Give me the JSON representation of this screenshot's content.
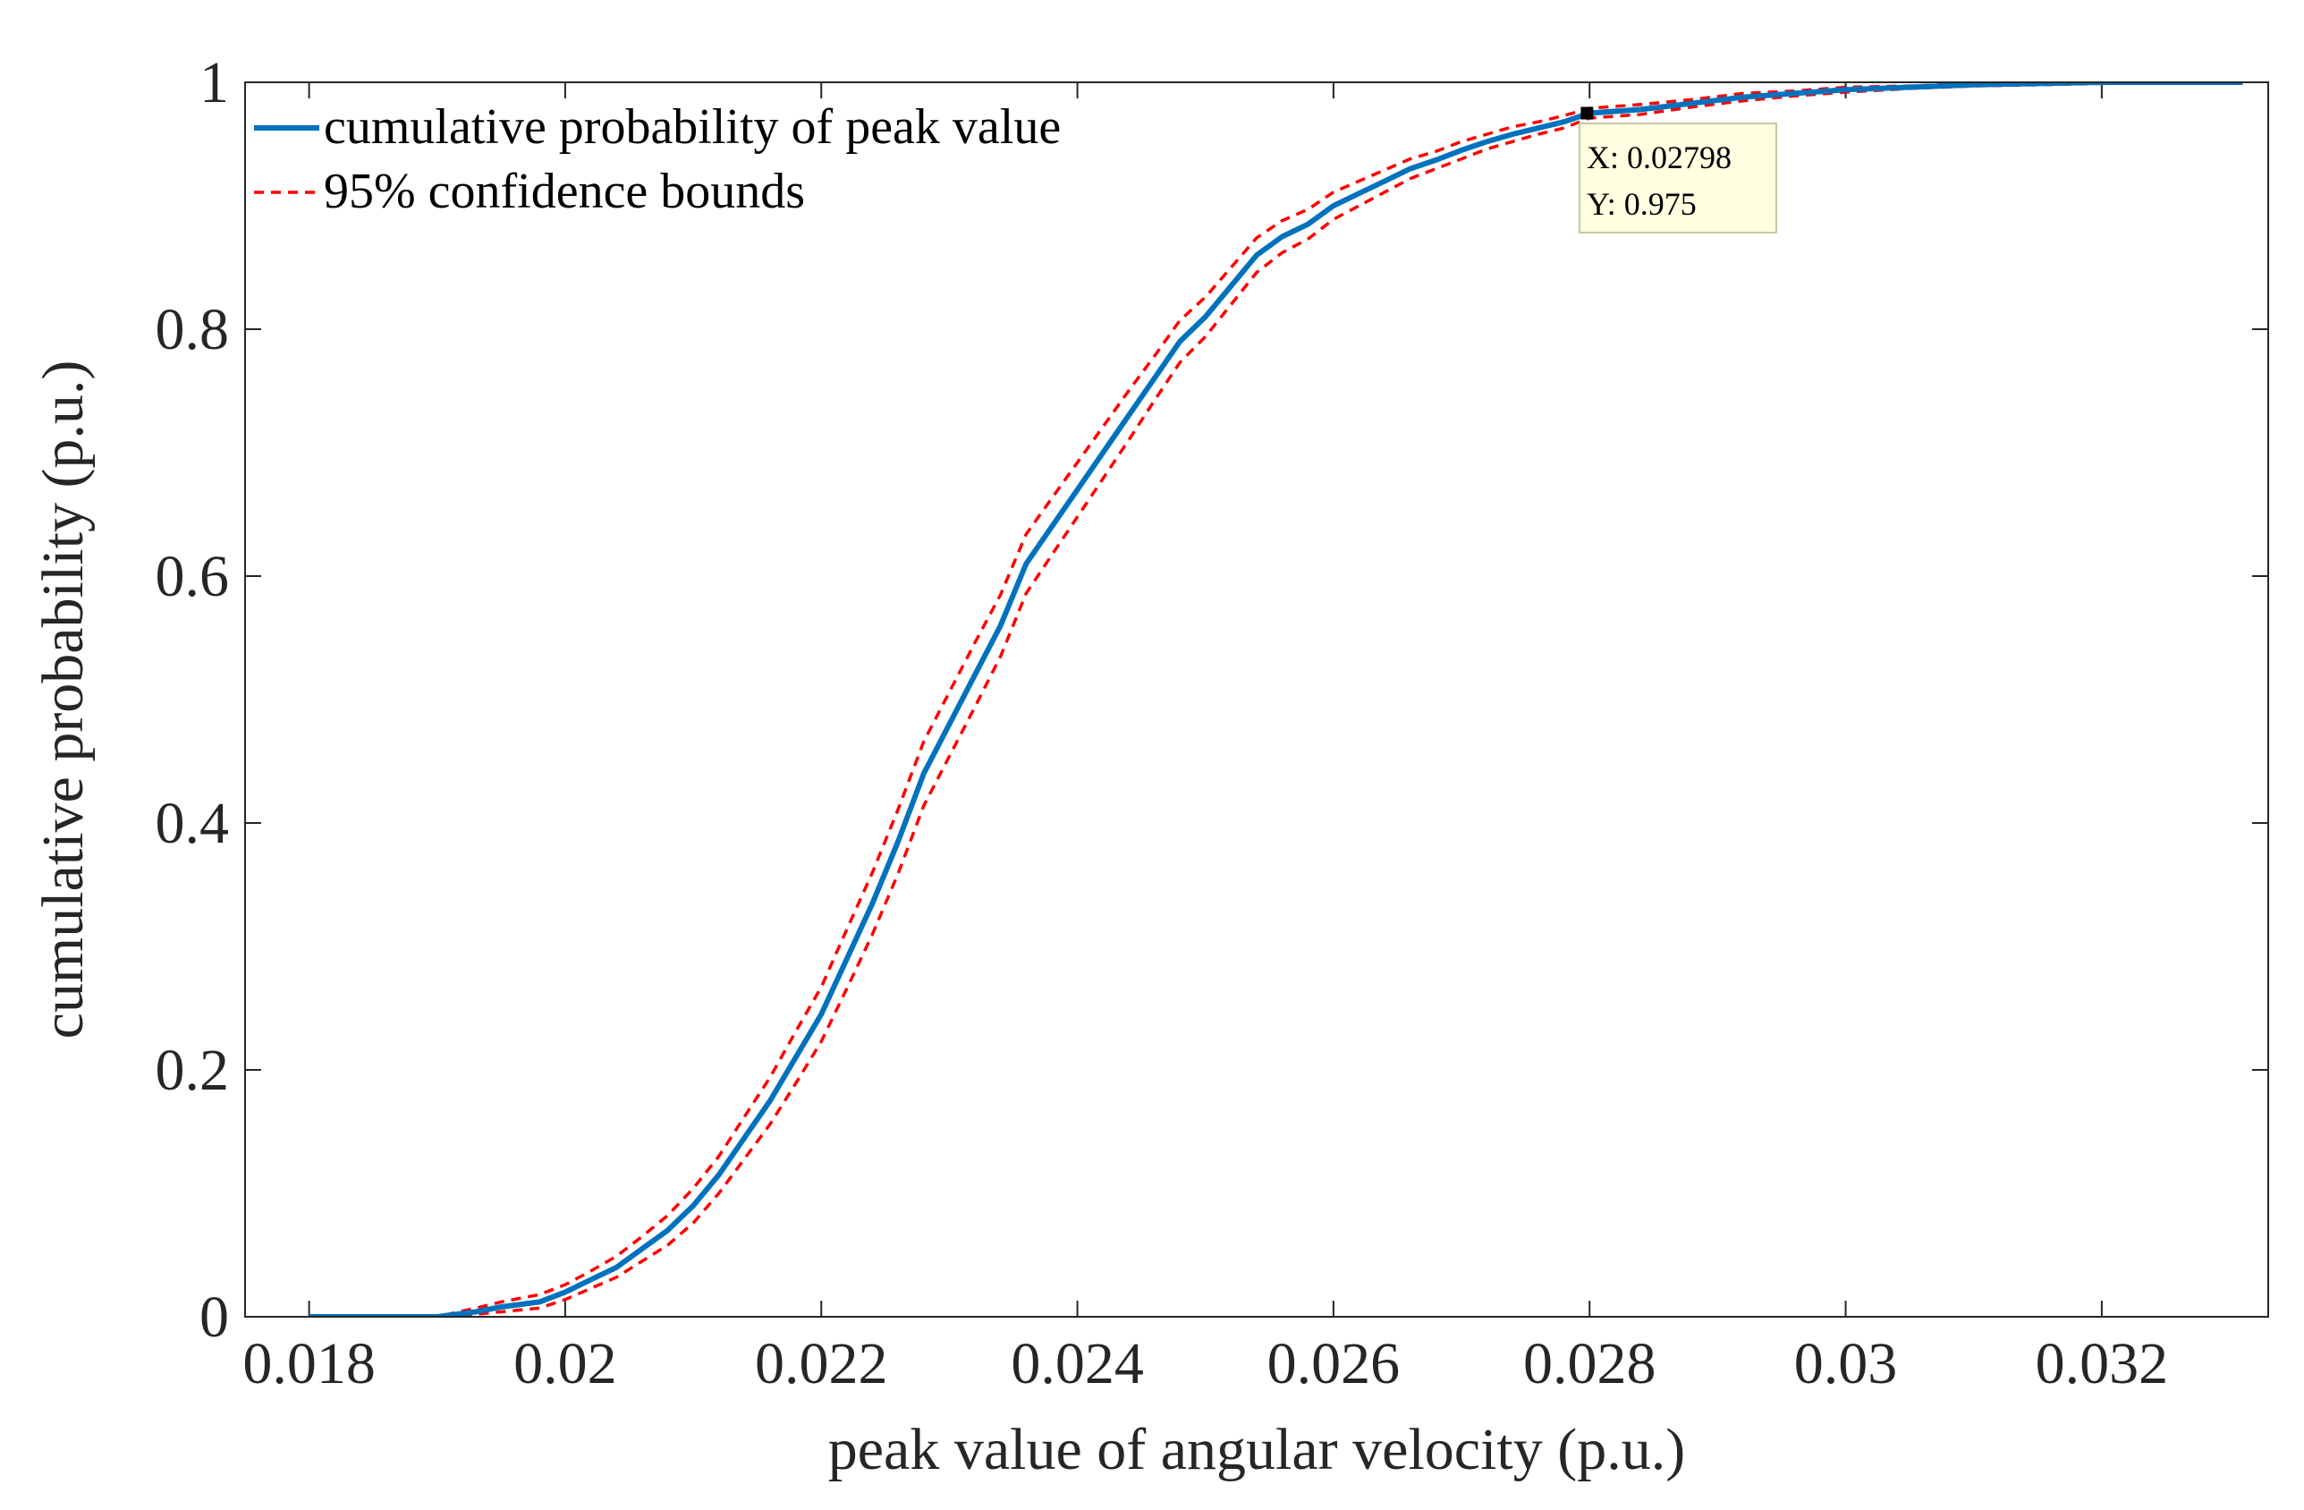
{
  "chart_data": {
    "type": "line",
    "title": "",
    "xlabel": "peak value of angular velocity (p.u.)",
    "ylabel": "cumulative probability (p.u.)",
    "xlim": [
      0.0175,
      0.0333
    ],
    "ylim": [
      0,
      1
    ],
    "x_ticks": [
      0.018,
      0.02,
      0.022,
      0.024,
      0.026,
      0.028,
      0.03,
      0.032
    ],
    "x_tick_labels": [
      "0.018",
      "0.02",
      "0.022",
      "0.024",
      "0.026",
      "0.028",
      "0.03",
      "0.032"
    ],
    "y_ticks": [
      0,
      0.2,
      0.4,
      0.6,
      0.8,
      1
    ],
    "y_tick_labels": [
      "0",
      "0.2",
      "0.4",
      "0.6",
      "0.8",
      "1"
    ],
    "grid": false,
    "legend_position": "top-left",
    "colors": {
      "cdf": "#0072BD",
      "bounds": "#FF0000"
    },
    "series": [
      {
        "name": "cumulative probability of peak value",
        "style": "solid",
        "x": [
          0.018,
          0.0185,
          0.019,
          0.0193,
          0.0195,
          0.0198,
          0.02,
          0.0202,
          0.0204,
          0.0206,
          0.0208,
          0.021,
          0.0212,
          0.0214,
          0.0216,
          0.0218,
          0.022,
          0.0222,
          0.0224,
          0.0226,
          0.0228,
          0.023,
          0.0232,
          0.0234,
          0.0236,
          0.0238,
          0.024,
          0.0242,
          0.0244,
          0.0246,
          0.0248,
          0.025,
          0.0252,
          0.0254,
          0.0256,
          0.0258,
          0.026,
          0.0262,
          0.0264,
          0.0266,
          0.0268,
          0.027,
          0.0272,
          0.0274,
          0.0276,
          0.0278,
          0.028,
          0.0284,
          0.0288,
          0.0292,
          0.0296,
          0.03,
          0.0305,
          0.031,
          0.0315,
          0.032,
          0.0325,
          0.0331
        ],
        "y": [
          0,
          0,
          0,
          0.004,
          0.008,
          0.012,
          0.02,
          0.03,
          0.04,
          0.055,
          0.07,
          0.09,
          0.115,
          0.145,
          0.175,
          0.21,
          0.245,
          0.29,
          0.335,
          0.385,
          0.44,
          0.48,
          0.52,
          0.56,
          0.61,
          0.64,
          0.67,
          0.7,
          0.73,
          0.76,
          0.79,
          0.81,
          0.835,
          0.86,
          0.875,
          0.885,
          0.9,
          0.91,
          0.92,
          0.93,
          0.937,
          0.945,
          0.952,
          0.958,
          0.963,
          0.968,
          0.975,
          0.978,
          0.983,
          0.988,
          0.991,
          0.994,
          0.996,
          0.998,
          0.999,
          1.0,
          1.0,
          1.0
        ]
      },
      {
        "name": "95% confidence bounds",
        "style": "dashed",
        "x": [
          0.018,
          0.0185,
          0.019,
          0.0193,
          0.0195,
          0.0198,
          0.02,
          0.0202,
          0.0204,
          0.0206,
          0.0208,
          0.021,
          0.0212,
          0.0214,
          0.0216,
          0.0218,
          0.022,
          0.0222,
          0.0224,
          0.0226,
          0.0228,
          0.023,
          0.0232,
          0.0234,
          0.0236,
          0.0238,
          0.024,
          0.0242,
          0.0244,
          0.0246,
          0.0248,
          0.025,
          0.0252,
          0.0254,
          0.0256,
          0.0258,
          0.026,
          0.0262,
          0.0264,
          0.0266,
          0.0268,
          0.027,
          0.0272,
          0.0274,
          0.0276,
          0.0278,
          0.028,
          0.0284,
          0.0288,
          0.0292,
          0.0296,
          0.03,
          0.0305,
          0.031,
          0.0315,
          0.032,
          0.0325,
          0.0331
        ],
        "y": [
          0,
          0,
          0,
          0.007,
          0.012,
          0.018,
          0.026,
          0.037,
          0.049,
          0.065,
          0.082,
          0.104,
          0.13,
          0.162,
          0.194,
          0.231,
          0.267,
          0.314,
          0.36,
          0.411,
          0.466,
          0.506,
          0.546,
          0.585,
          0.634,
          0.663,
          0.692,
          0.721,
          0.75,
          0.778,
          0.807,
          0.826,
          0.85,
          0.874,
          0.888,
          0.897,
          0.911,
          0.92,
          0.929,
          0.938,
          0.944,
          0.952,
          0.958,
          0.964,
          0.968,
          0.973,
          0.979,
          0.982,
          0.986,
          0.991,
          0.993,
          0.996,
          0.997,
          0.999,
          1.0,
          1.0,
          1.0,
          1.0
        ]
      },
      {
        "style": "dashed",
        "x": [
          0.018,
          0.0185,
          0.019,
          0.0193,
          0.0195,
          0.0198,
          0.02,
          0.0202,
          0.0204,
          0.0206,
          0.0208,
          0.021,
          0.0212,
          0.0214,
          0.0216,
          0.0218,
          0.022,
          0.0222,
          0.0224,
          0.0226,
          0.0228,
          0.023,
          0.0232,
          0.0234,
          0.0236,
          0.0238,
          0.024,
          0.0242,
          0.0244,
          0.0246,
          0.0248,
          0.025,
          0.0252,
          0.0254,
          0.0256,
          0.0258,
          0.026,
          0.0262,
          0.0264,
          0.0266,
          0.0268,
          0.027,
          0.0272,
          0.0274,
          0.0276,
          0.0278,
          0.028,
          0.0284,
          0.0288,
          0.0292,
          0.0296,
          0.03,
          0.0305,
          0.031,
          0.0315,
          0.032,
          0.0325,
          0.0331
        ],
        "y": [
          0,
          0,
          0,
          0.002,
          0.004,
          0.007,
          0.014,
          0.023,
          0.032,
          0.045,
          0.058,
          0.076,
          0.1,
          0.128,
          0.156,
          0.189,
          0.223,
          0.266,
          0.31,
          0.359,
          0.414,
          0.454,
          0.494,
          0.535,
          0.586,
          0.617,
          0.648,
          0.679,
          0.71,
          0.742,
          0.773,
          0.794,
          0.82,
          0.846,
          0.862,
          0.873,
          0.889,
          0.9,
          0.911,
          0.922,
          0.93,
          0.938,
          0.946,
          0.952,
          0.958,
          0.963,
          0.971,
          0.974,
          0.98,
          0.985,
          0.989,
          0.992,
          0.995,
          0.997,
          0.998,
          0.999,
          1.0,
          1.0
        ]
      }
    ],
    "datatip": {
      "x": 0.02798,
      "y": 0.975,
      "x_text": "X: 0.02798",
      "y_text": "Y: 0.975"
    }
  }
}
